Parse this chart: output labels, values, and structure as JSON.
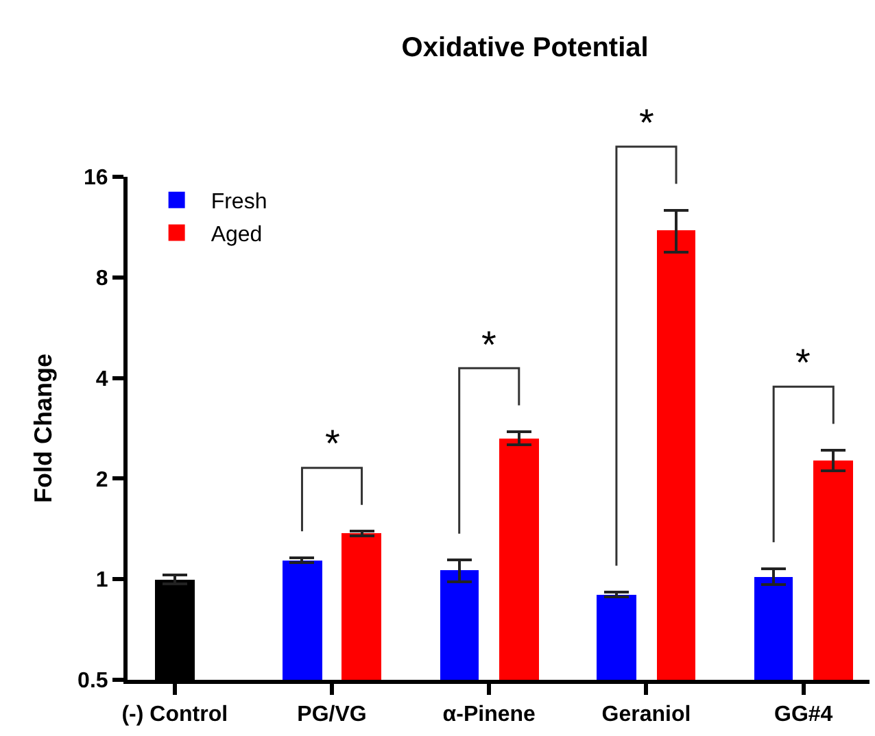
{
  "chart_data": {
    "type": "bar",
    "title": "Oxidative Potential",
    "ylabel": "Fold Change",
    "categories": [
      "(-) Control",
      "PG/VG",
      "α-Pinene",
      "Geraniol",
      "GG#4"
    ],
    "series": [
      {
        "color": "#000000",
        "values": [
          1.0,
          null,
          null,
          null,
          null
        ],
        "errors": [
          0.03,
          null,
          null,
          null,
          null
        ]
      },
      {
        "name": "Fresh",
        "color": "#0000ff",
        "values": [
          null,
          1.14,
          1.06,
          0.9,
          1.02
        ],
        "errors": [
          null,
          0.02,
          0.08,
          0.015,
          0.055
        ]
      },
      {
        "name": "Aged",
        "color": "#ff0000",
        "values": [
          null,
          1.37,
          2.64,
          11.1,
          2.27
        ],
        "errors": [
          null,
          0.02,
          0.12,
          1.6,
          0.16
        ]
      }
    ],
    "annotations": [
      "*",
      "*",
      "*",
      "*"
    ],
    "log": true,
    "ylim": [
      0.5,
      16
    ],
    "yticks": [
      0.5,
      1,
      2,
      4,
      8,
      16
    ],
    "grid": false,
    "legend": "top left"
  }
}
